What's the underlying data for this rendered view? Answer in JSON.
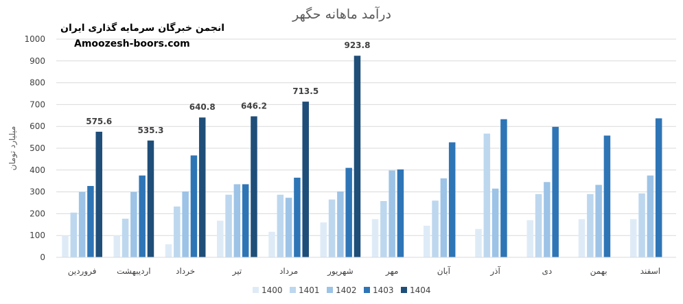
{
  "watermark": {
    "line1": "انجمن خبرگان سرمایه گذاری ایران",
    "line2": "Amoozesh-boors.com"
  },
  "chart_data": {
    "type": "bar",
    "title": "درآمد ماهانه حگهر",
    "xlabel": "",
    "ylabel": "میلیارد تومان",
    "ylim": [
      0,
      1000
    ],
    "yticks": [
      0,
      100,
      200,
      300,
      400,
      500,
      600,
      700,
      800,
      900,
      1000
    ],
    "grid": true,
    "legend": "bottom",
    "categories": [
      "فروردین",
      "اردیبهشت",
      "خرداد",
      "تیر",
      "مرداد",
      "شهریور",
      "مهر",
      "آبان",
      "آذر",
      "دی",
      "بهمن",
      "اسفند"
    ],
    "series": [
      {
        "name": "1400",
        "color": "#deebf7",
        "values": [
          100,
          100,
          60,
          168,
          117,
          160,
          175,
          145,
          130,
          170,
          175,
          175
        ]
      },
      {
        "name": "1401",
        "color": "#bdd7ee",
        "values": [
          205,
          177,
          233,
          287,
          287,
          265,
          258,
          260,
          567,
          290,
          290,
          293
        ]
      },
      {
        "name": "1402",
        "color": "#9dc3e6",
        "values": [
          300,
          300,
          302,
          335,
          273,
          302,
          398,
          362,
          315,
          345,
          332,
          375
        ]
      },
      {
        "name": "1403",
        "color": "#2e75b6",
        "values": [
          327,
          375,
          467,
          335,
          365,
          410,
          403,
          527,
          633,
          598,
          558,
          637
        ]
      },
      {
        "name": "1404",
        "color": "#1f4e79",
        "values": [
          575.6,
          535.3,
          640.8,
          646.2,
          713.5,
          923.8,
          null,
          null,
          null,
          null,
          null,
          null
        ]
      }
    ],
    "data_labels": {
      "series": "1404",
      "labels": [
        "575.6",
        "535.3",
        "640.8",
        "646.2",
        "713.5",
        "923.8"
      ]
    }
  }
}
